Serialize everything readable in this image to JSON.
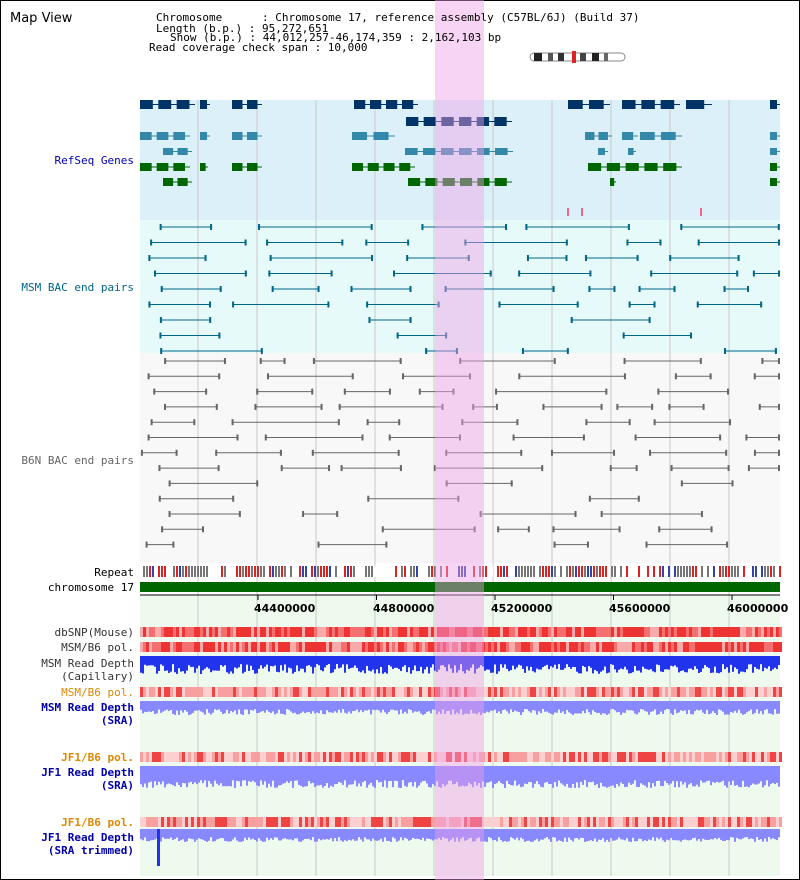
{
  "header": {
    "title": "Map View",
    "info_line1": "Chromosome      : Chromosome 17, reference assembly (C57BL/6J) (Build 37)",
    "info_line2": "Length (b.p.) : 95,272,651",
    "info_line3": "Show (b.p.) : 44,012,257-46,174,359 : 2,162,103 bp",
    "info_line4": "Read coverage check span : 10,000"
  },
  "tracks": {
    "refseq": "RefSeq Genes",
    "msm_bac": "MSM BAC end pairs",
    "b6n_bac": "B6N BAC end pairs",
    "repeat": "Repeat",
    "chromosome": "chromosome 17",
    "dbsnp": "dbSNP(Mouse)",
    "msm_b6_pol_1": "MSM/B6 pol.",
    "msm_read_depth_cap_1": "MSM Read Depth",
    "msm_read_depth_cap_2": "(Capillary)",
    "msm_b6_pol_2": "MSM/B6 pol.",
    "msm_read_depth_sra_1": "MSM Read Depth",
    "msm_read_depth_sra_2": "(SRA)",
    "jf1_b6_pol_1": "JF1/B6 pol.",
    "jf1_read_depth_sra_1": "JF1 Read Depth",
    "jf1_read_depth_sra_2": "(SRA)",
    "jf1_b6_pol_2": "JF1/B6 pol.",
    "jf1_read_depth_trim_1": "JF1 Read Depth",
    "jf1_read_depth_trim_2": "(SRA trimmed)"
  },
  "axis": {
    "ticks": [
      "44400000",
      "44800000",
      "45200000",
      "45600000",
      "46000000"
    ]
  },
  "colors": {
    "refseq_bg": "#dcf0fa",
    "bac_bg": "#e6fafa",
    "highlight": "#f6c8f0",
    "chromosome": "#006600",
    "refseq_dark": "#003366",
    "refseq_mid": "#3388aa",
    "refseq_green": "#006600",
    "msm_bac": "#006688",
    "b6n_bac": "#666666",
    "depth_blue": "#2233ee",
    "depth_light": "#8888ff",
    "label_blue": "#0000aa",
    "label_teal": "#006688",
    "label_orange": "#dd8800"
  }
}
